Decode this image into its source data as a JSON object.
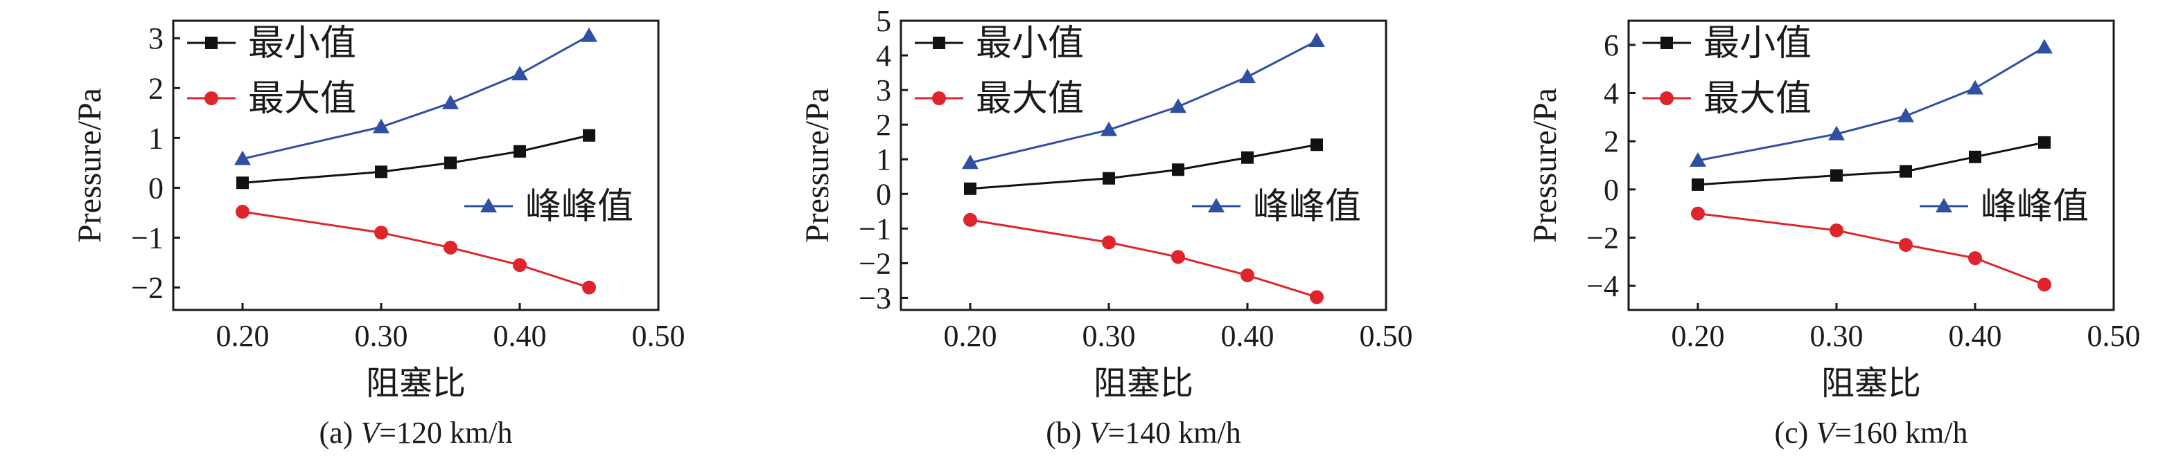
{
  "figure": {
    "colors": {
      "min": "#111111",
      "max": "#e0242b",
      "peak": "#2f4fa3",
      "axis": "#1a1a1a"
    }
  },
  "chart_data": [
    {
      "type": "line",
      "caption": "(a) V=120 km/h",
      "caption_prefix": "(a) ",
      "caption_var": "V",
      "caption_value": "=120 km/h",
      "xlabel": "阻塞比",
      "ylabel": "Pressure/Pa",
      "xlim": [
        0.15,
        0.5
      ],
      "ylim": [
        -2.45,
        3.35
      ],
      "xticks": [
        0.2,
        0.3,
        0.4,
        0.5
      ],
      "xtick_labels": [
        "0.20",
        "0.30",
        "0.40",
        "0.50"
      ],
      "yticks": [
        -2,
        -1,
        0,
        1,
        2,
        3
      ],
      "ytick_labels": [
        "−2",
        "−1",
        "0",
        "1",
        "2",
        "3"
      ],
      "x": [
        0.2,
        0.3,
        0.35,
        0.4,
        0.45
      ],
      "series": [
        {
          "name": "最小值",
          "marker": "square",
          "color": "#111111",
          "values": [
            0.1,
            0.32,
            0.5,
            0.73,
            1.05
          ]
        },
        {
          "name": "最大值",
          "marker": "circle",
          "color": "#e0242b",
          "values": [
            -0.48,
            -0.9,
            -1.2,
            -1.55,
            -2.0
          ]
        },
        {
          "name": "峰峰值",
          "marker": "triangle",
          "color": "#2f4fa3",
          "values": [
            0.58,
            1.22,
            1.7,
            2.28,
            3.05
          ]
        }
      ]
    },
    {
      "type": "line",
      "caption": "(b) V=140 km/h",
      "caption_prefix": "(b) ",
      "caption_var": "V",
      "caption_value": "=140 km/h",
      "xlabel": "阻塞比",
      "ylabel": "Pressure/Pa",
      "xlim": [
        0.15,
        0.5
      ],
      "ylim": [
        -3.35,
        5.0
      ],
      "xticks": [
        0.2,
        0.3,
        0.4,
        0.5
      ],
      "xtick_labels": [
        "0.20",
        "0.30",
        "0.40",
        "0.50"
      ],
      "yticks": [
        -3,
        -2,
        -1,
        0,
        1,
        2,
        3,
        4,
        5
      ],
      "ytick_labels": [
        "−3",
        "−2",
        "−1",
        "0",
        "1",
        "2",
        "3",
        "4",
        "5"
      ],
      "x": [
        0.2,
        0.3,
        0.35,
        0.4,
        0.45
      ],
      "series": [
        {
          "name": "最小值",
          "marker": "square",
          "color": "#111111",
          "values": [
            0.15,
            0.45,
            0.7,
            1.05,
            1.42
          ]
        },
        {
          "name": "最大值",
          "marker": "circle",
          "color": "#e0242b",
          "values": [
            -0.75,
            -1.4,
            -1.82,
            -2.35,
            -2.98
          ]
        },
        {
          "name": "峰峰值",
          "marker": "triangle",
          "color": "#2f4fa3",
          "values": [
            0.9,
            1.85,
            2.52,
            3.38,
            4.42
          ]
        }
      ]
    },
    {
      "type": "line",
      "caption": "(c) V=160 km/h",
      "caption_prefix": "(c) ",
      "caption_var": "V",
      "caption_value": "=160 km/h",
      "xlabel": "阻塞比",
      "ylabel": "Pressure/Pa",
      "xlim": [
        0.15,
        0.5
      ],
      "ylim": [
        -5.0,
        7.0
      ],
      "xticks": [
        0.2,
        0.3,
        0.4,
        0.5
      ],
      "xtick_labels": [
        "0.20",
        "0.30",
        "0.40",
        "0.50"
      ],
      "yticks": [
        -4,
        -2,
        0,
        2,
        4,
        6
      ],
      "ytick_labels": [
        "−4",
        "−2",
        "0",
        "2",
        "4",
        "6"
      ],
      "x": [
        0.2,
        0.3,
        0.35,
        0.4,
        0.45
      ],
      "series": [
        {
          "name": "最小值",
          "marker": "square",
          "color": "#111111",
          "values": [
            0.2,
            0.58,
            0.75,
            1.35,
            1.95
          ]
        },
        {
          "name": "最大值",
          "marker": "circle",
          "color": "#e0242b",
          "values": [
            -1.0,
            -1.7,
            -2.3,
            -2.85,
            -3.95
          ]
        },
        {
          "name": "峰峰值",
          "marker": "triangle",
          "color": "#2f4fa3",
          "values": [
            1.2,
            2.3,
            3.05,
            4.2,
            5.9
          ]
        }
      ]
    }
  ]
}
